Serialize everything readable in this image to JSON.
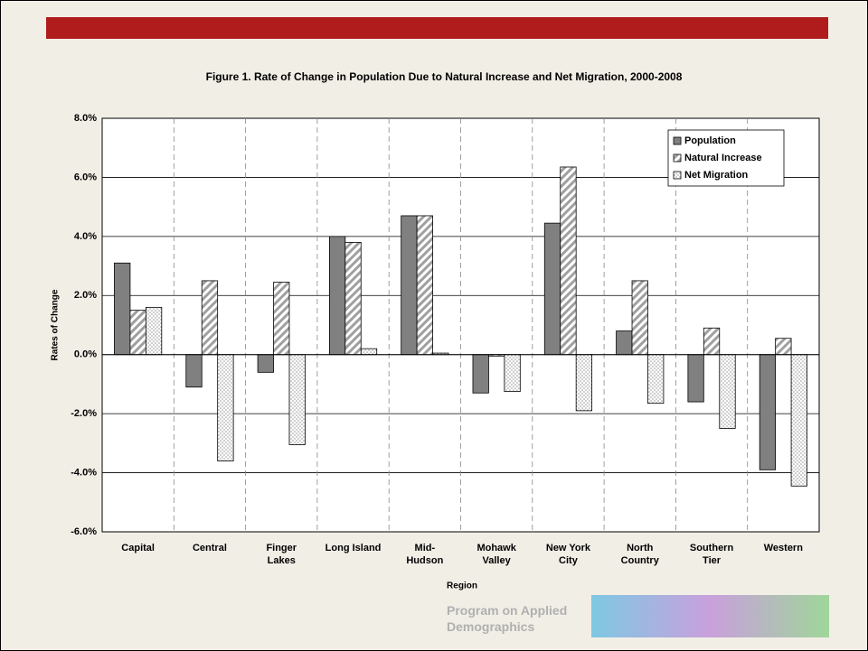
{
  "chart_data": {
    "type": "bar",
    "title": "Figure 1. Rate of Change in Population Due to Natural Increase and Net Migration, 2000-2008",
    "x_label": "Region",
    "y_label": "Rates of Change",
    "categories": [
      "Capital",
      "Central",
      "Finger Lakes",
      "Long Island",
      "Mid-Hudson",
      "Mohawk Valley",
      "New York City",
      "North Country",
      "Southern Tier",
      "Western"
    ],
    "series": [
      {
        "name": "Population",
        "color": "#808080",
        "pattern": "solid",
        "values": [
          3.1,
          -1.1,
          -0.6,
          4.0,
          4.7,
          -1.3,
          4.45,
          0.8,
          -1.6,
          -3.9
        ]
      },
      {
        "name": "Natural Increase",
        "color": "#a0a0a0",
        "pattern": "hatch",
        "values": [
          1.5,
          2.5,
          2.45,
          3.8,
          4.7,
          -0.05,
          6.35,
          2.5,
          0.9,
          0.55
        ]
      },
      {
        "name": "Net Migration",
        "color": "#a0a0a0",
        "pattern": "dots",
        "values": [
          1.6,
          -3.6,
          -3.05,
          0.2,
          0.05,
          -1.25,
          -1.9,
          -1.65,
          -2.5,
          -4.45
        ]
      }
    ],
    "ylim": [
      -6,
      8
    ],
    "yticks": [
      {
        "value": -6,
        "label": "-6.0%"
      },
      {
        "value": -4,
        "label": "-4.0%"
      },
      {
        "value": -2,
        "label": "-2.0%"
      },
      {
        "value": 0,
        "label": "0.0%"
      },
      {
        "value": 2,
        "label": "2.0%"
      },
      {
        "value": 4,
        "label": "4.0%"
      },
      {
        "value": 6,
        "label": "6.0%"
      },
      {
        "value": 8,
        "label": "8.0%"
      }
    ],
    "grid": true,
    "legend": "top-right"
  },
  "footer": {
    "text": "Program on Applied Demographics"
  }
}
